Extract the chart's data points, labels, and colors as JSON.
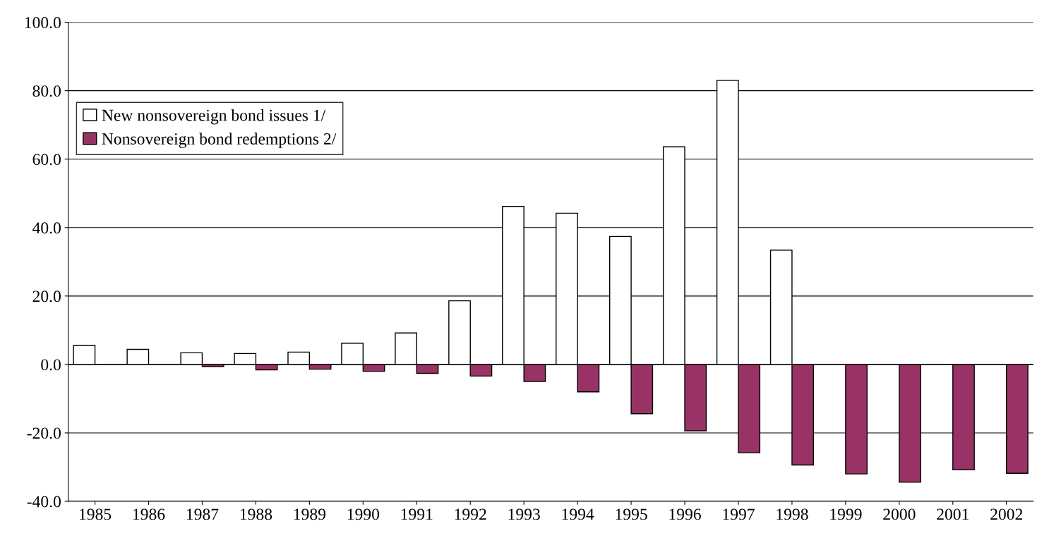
{
  "chart_data": {
    "type": "bar",
    "categories": [
      "1985",
      "1986",
      "1987",
      "1988",
      "1989",
      "1990",
      "1991",
      "1992",
      "1993",
      "1994",
      "1995",
      "1996",
      "1997",
      "1998",
      "1999",
      "2000",
      "2001",
      "2002"
    ],
    "series": [
      {
        "name": "New nonsovereign bond issues 1/",
        "color": "#ffffff",
        "values": [
          5.6,
          4.4,
          3.4,
          3.2,
          3.6,
          6.2,
          9.2,
          18.6,
          46.2,
          44.2,
          37.4,
          63.6,
          83,
          33.4,
          0,
          0,
          0,
          0
        ]
      },
      {
        "name": "Nonsovereign bond redemptions 2/",
        "color": "#993366",
        "values": [
          0,
          0,
          -0.6,
          -1.6,
          -1.4,
          -2,
          -2.6,
          -3.4,
          -5,
          -8,
          -14.4,
          -19.4,
          -25.8,
          -29.4,
          -32,
          -34.4,
          -30.8,
          -31.8
        ]
      }
    ],
    "ylim": [
      -40,
      100
    ],
    "yticks": [
      {
        "value": -40,
        "label": "-40.0"
      },
      {
        "value": -20,
        "label": "-20.0"
      },
      {
        "value": 0,
        "label": "0.0"
      },
      {
        "value": 20,
        "label": "20.0"
      },
      {
        "value": 40,
        "label": "40.0"
      },
      {
        "value": 60,
        "label": "60.0"
      },
      {
        "value": 80,
        "label": "80.0"
      },
      {
        "value": 100,
        "label": "100.0"
      }
    ],
    "grid": "y",
    "legend": "top left"
  }
}
